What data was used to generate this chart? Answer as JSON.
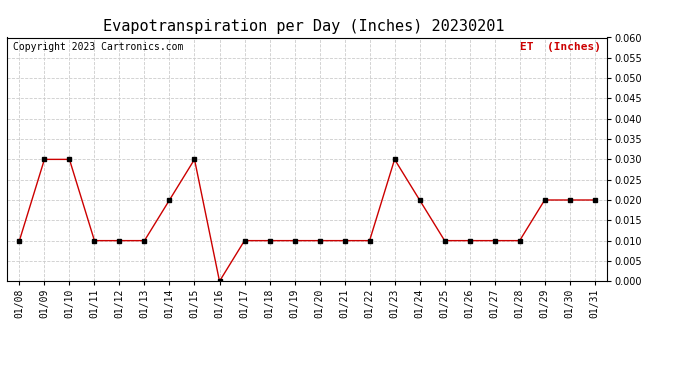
{
  "title": "Evapotranspiration per Day (Inches) 20230201",
  "copyright": "Copyright 2023 Cartronics.com",
  "legend_label": "ET  (Inches)",
  "x_labels": [
    "01/08",
    "01/09",
    "01/10",
    "01/11",
    "01/12",
    "01/13",
    "01/14",
    "01/15",
    "01/16",
    "01/17",
    "01/18",
    "01/19",
    "01/20",
    "01/21",
    "01/22",
    "01/23",
    "01/24",
    "01/25",
    "01/26",
    "01/27",
    "01/28",
    "01/29",
    "01/30",
    "01/31"
  ],
  "y_values": [
    0.01,
    0.03,
    0.03,
    0.01,
    0.01,
    0.01,
    0.02,
    0.03,
    0.0,
    0.01,
    0.01,
    0.01,
    0.01,
    0.01,
    0.01,
    0.03,
    0.02,
    0.01,
    0.01,
    0.01,
    0.01,
    0.02,
    0.02,
    0.02
  ],
  "line_color": "#cc0000",
  "marker_color": "#000000",
  "marker_size": 3,
  "line_width": 1.0,
  "ylim": [
    0.0,
    0.06
  ],
  "ytick_step": 0.005,
  "grid_color": "#cccccc",
  "background_color": "#ffffff",
  "title_fontsize": 11,
  "copyright_fontsize": 7,
  "legend_fontsize": 8,
  "tick_fontsize": 7
}
